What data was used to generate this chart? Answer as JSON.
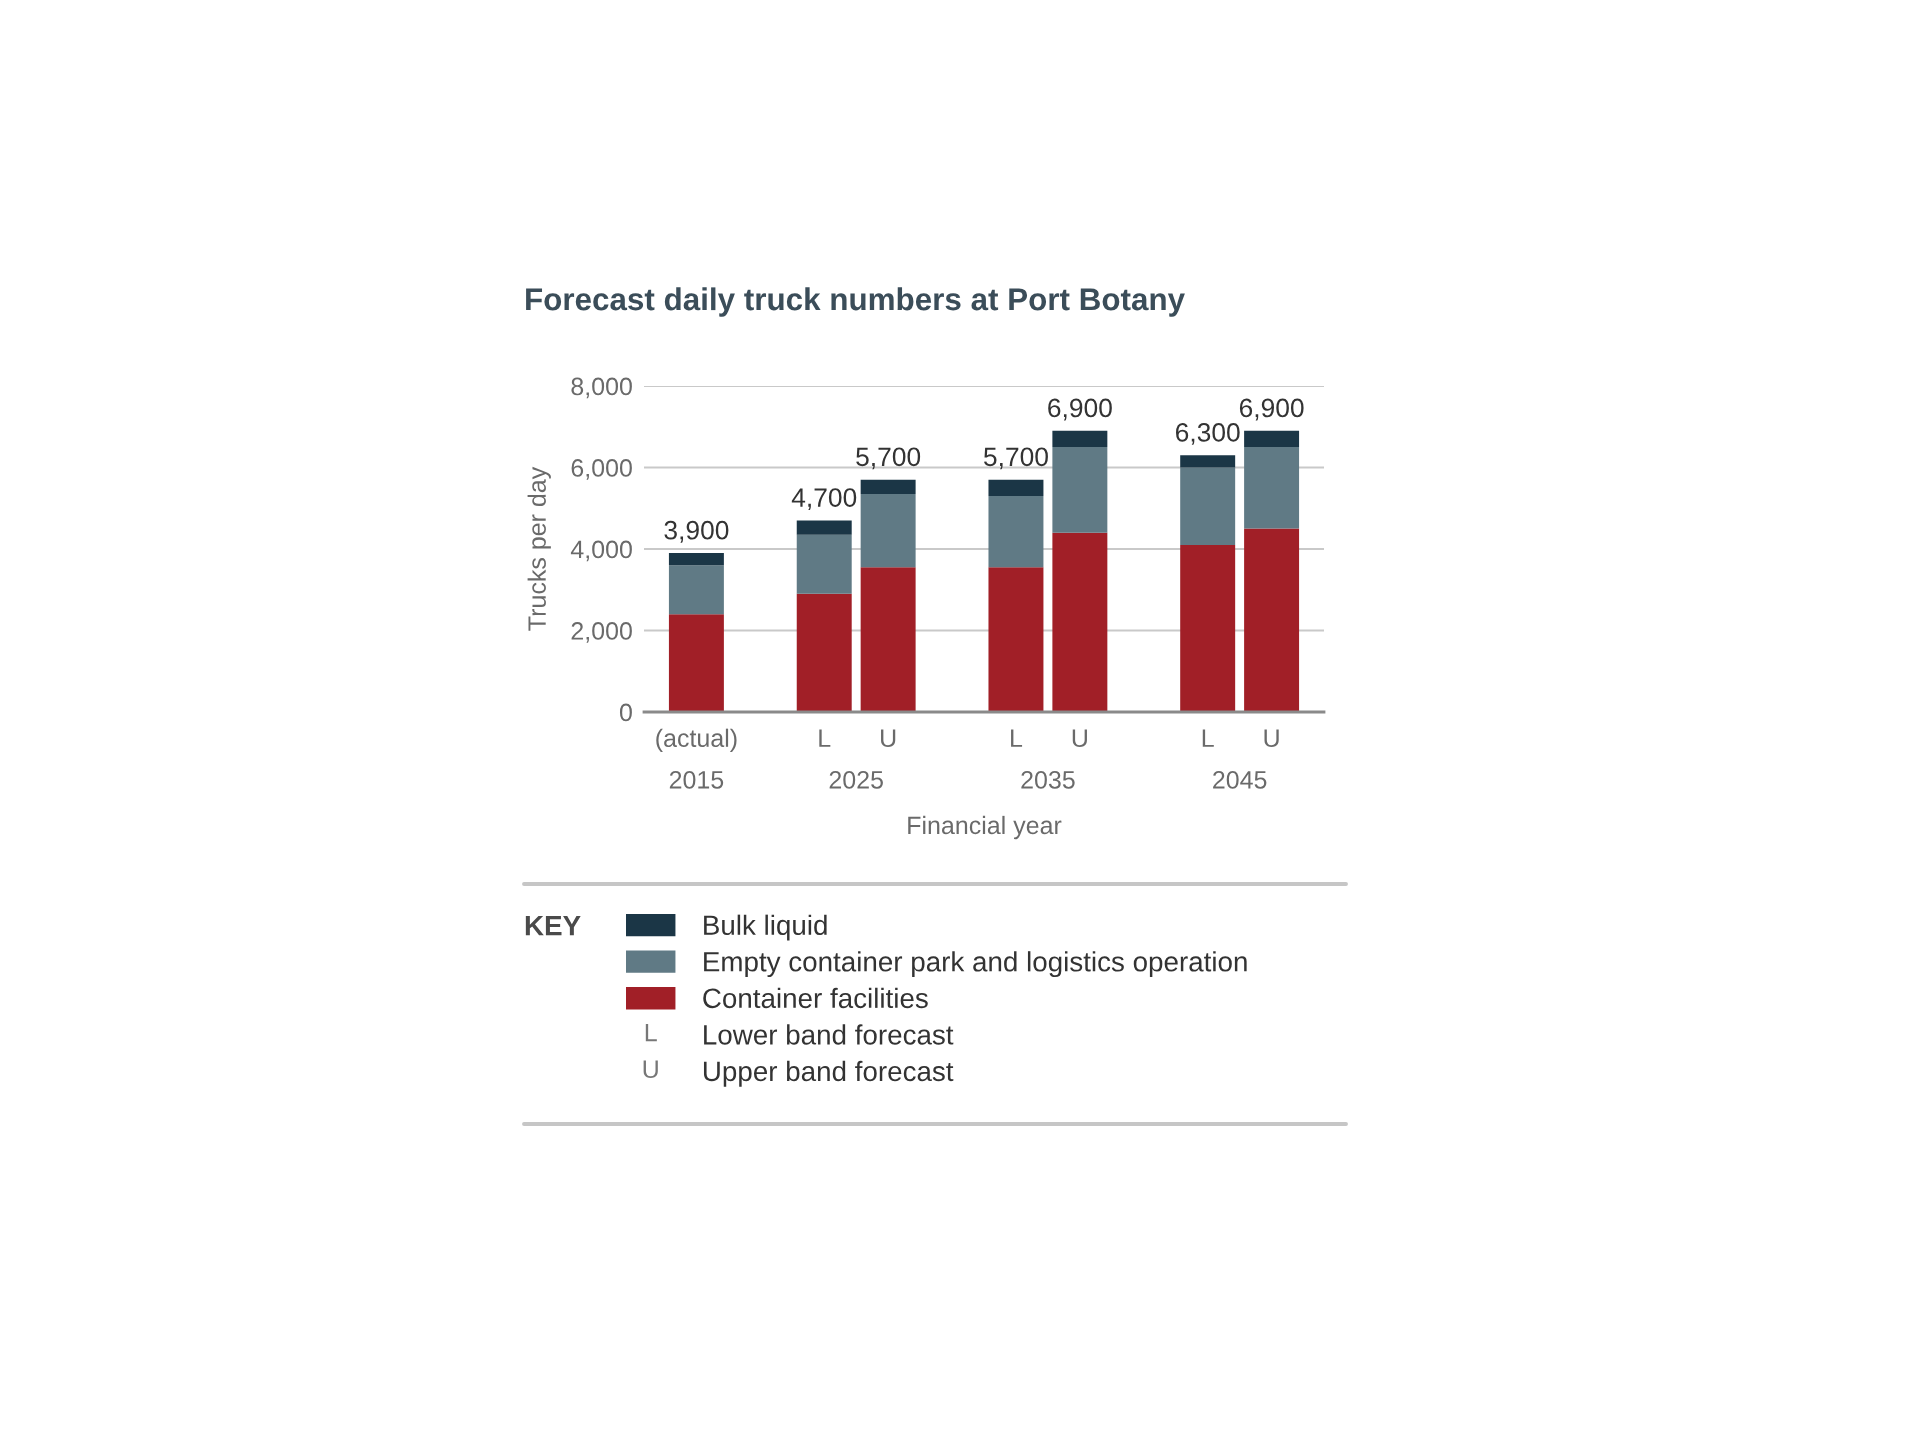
{
  "chart_data": {
    "type": "bar",
    "title": "Forecast daily truck numbers at Port Botany",
    "xlabel": "Financial year",
    "ylabel": "Trucks per day",
    "legend_title": "KEY",
    "categories": [
      "(actual)",
      null,
      "L",
      "U",
      null,
      "L",
      "U",
      null,
      "L",
      "U"
    ],
    "series": [
      {
        "name": "Container facilities",
        "color": "#a11f27",
        "values": [
          2400,
          null,
          2900,
          3550,
          null,
          3550,
          4400,
          null,
          4100,
          4500
        ]
      },
      {
        "name": "Empty container park and logistics operation",
        "color": "#607a85",
        "values": [
          1200,
          null,
          1450,
          1800,
          null,
          1750,
          2100,
          null,
          1900,
          2000
        ]
      },
      {
        "name": "Bulk liquid",
        "color": "#1b3646",
        "values": [
          300,
          null,
          350,
          350,
          null,
          400,
          400,
          null,
          300,
          400
        ]
      }
    ],
    "stacked": true,
    "totals": [
      "3,900",
      null,
      "4,700",
      "5,700",
      null,
      "5,700",
      "6,900",
      null,
      "6,300",
      "6,900"
    ],
    "ylim": [
      0,
      8000
    ],
    "yticks": [
      0,
      {
        "value": 2000,
        "label": "2,000"
      },
      {
        "value": 4000,
        "label": "4,000"
      },
      {
        "value": 6000,
        "label": "6,000"
      },
      {
        "value": 8000,
        "label": "8,000"
      }
    ],
    "grid": "y",
    "legend": "bottom",
    "annotations": [
      "2015",
      "2025",
      "2035",
      "2045",
      "L Lower band forecast",
      "U Upper band forecast"
    ]
  }
}
